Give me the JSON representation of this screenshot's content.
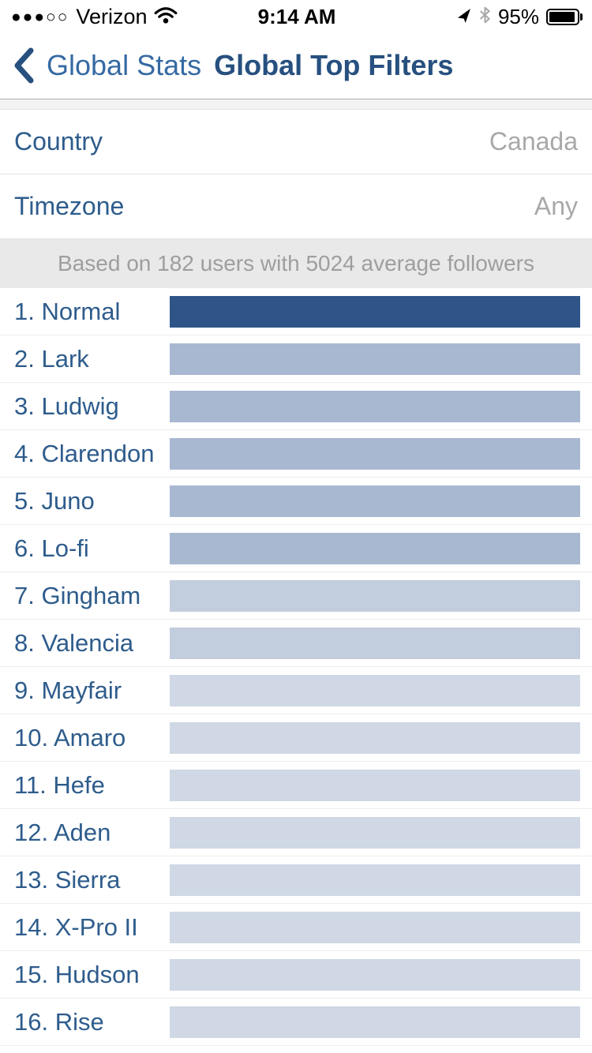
{
  "status_bar": {
    "signal_dots": "●●●○○",
    "carrier": "Verizon",
    "time": "9:14 AM",
    "battery_percent": "95%"
  },
  "nav": {
    "back_label": "Global Stats",
    "title": "Global Top Filters"
  },
  "form": {
    "rows": [
      {
        "label": "Country",
        "value": "Canada"
      },
      {
        "label": "Timezone",
        "value": "Any"
      }
    ]
  },
  "summary_banner": "Based on 182 users with 5024 average followers",
  "filter_chart": {
    "type": "bar",
    "orientation": "horizontal",
    "rows": [
      {
        "label": "1. Normal",
        "color": "#2f5588",
        "width_pct": 100
      },
      {
        "label": "2. Lark",
        "color": "#a8b8d1",
        "width_pct": 100
      },
      {
        "label": "3. Ludwig",
        "color": "#a8b8d1",
        "width_pct": 100
      },
      {
        "label": "4. Clarendon",
        "color": "#a8b8d1",
        "width_pct": 100
      },
      {
        "label": "5. Juno",
        "color": "#a8b8d1",
        "width_pct": 100
      },
      {
        "label": "6. Lo-fi",
        "color": "#a8b8d1",
        "width_pct": 100
      },
      {
        "label": "7. Gingham",
        "color": "#c2cddd",
        "width_pct": 100
      },
      {
        "label": "8. Valencia",
        "color": "#c2cddd",
        "width_pct": 100
      },
      {
        "label": "9. Mayfair",
        "color": "#cfd8e4",
        "width_pct": 100
      },
      {
        "label": "10. Amaro",
        "color": "#cfd8e4",
        "width_pct": 100
      },
      {
        "label": "11. Hefe",
        "color": "#cfd8e4",
        "width_pct": 100
      },
      {
        "label": "12. Aden",
        "color": "#cfd8e4",
        "width_pct": 100
      },
      {
        "label": "13. Sierra",
        "color": "#cfd8e4",
        "width_pct": 100
      },
      {
        "label": "14. X-Pro II",
        "color": "#cfd8e4",
        "width_pct": 100
      },
      {
        "label": "15. Hudson",
        "color": "#cfd8e4",
        "width_pct": 100
      },
      {
        "label": "16. Rise",
        "color": "#cfd8e4",
        "width_pct": 100
      }
    ]
  },
  "colors": {
    "label_blue": "#2e5c8c",
    "title_blue": "#27507f",
    "back_link_blue": "#356aa3",
    "value_gray": "#a8a8a8",
    "banner_bg": "#e9e9e9",
    "banner_text": "#9e9e9e",
    "bar_dark": "#2f5588",
    "bar_medium": "#a8b8d1",
    "bar_light": "#cfd8e4"
  }
}
